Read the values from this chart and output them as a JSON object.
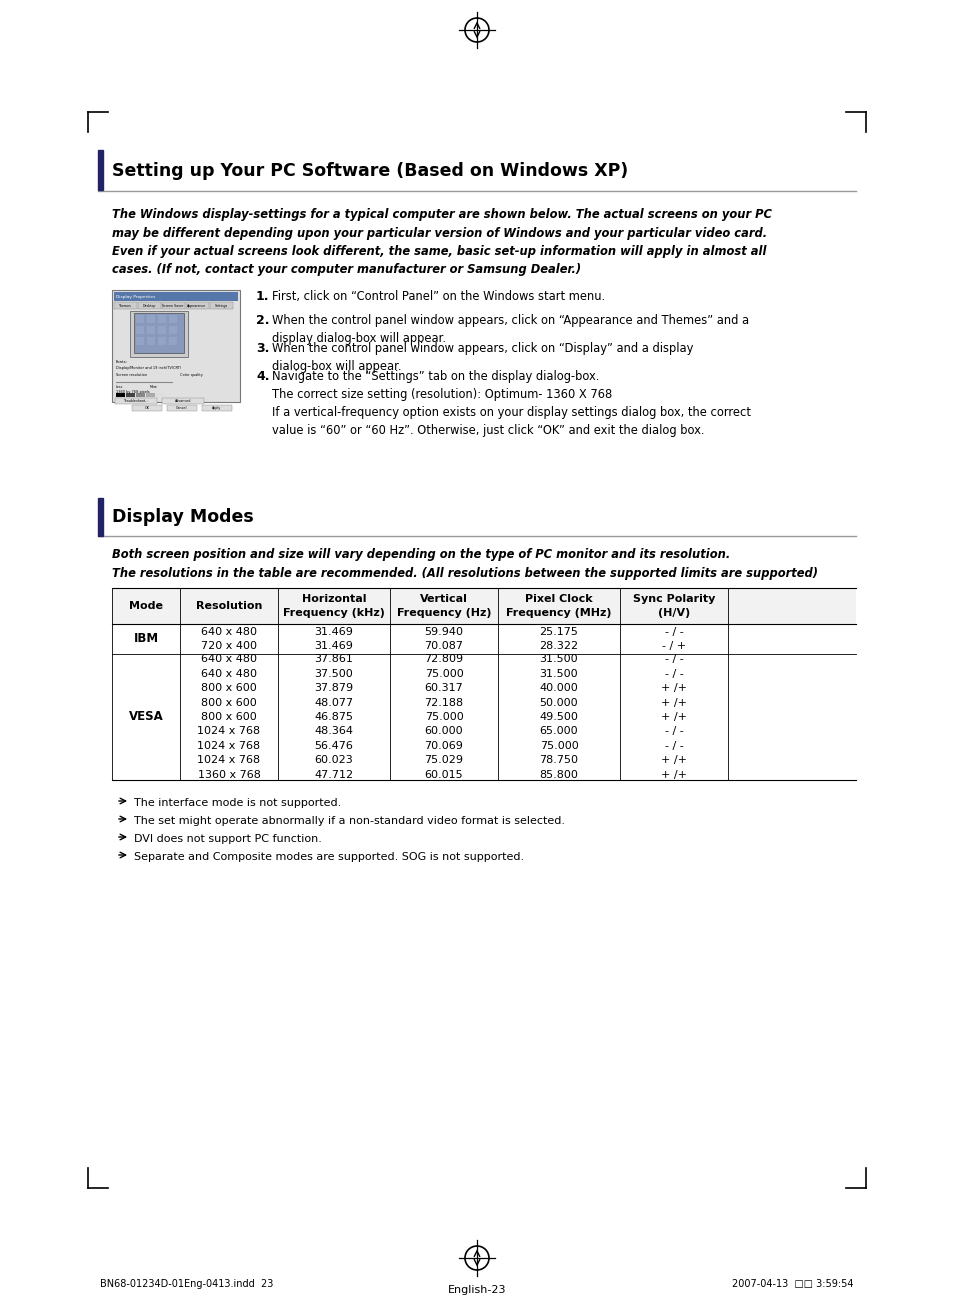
{
  "bg_color": "#ffffff",
  "section1_title": "Setting up Your PC Software (Based on Windows XP)",
  "section1_intro": "The Windows display-settings for a typical computer are shown below. The actual screens on your PC\nmay be different depending upon your particular version of Windows and your particular video card.\nEven if your actual screens look different, the same, basic set-up information will apply in almost all\ncases. (If not, contact your computer manufacturer or Samsung Dealer.)",
  "steps": [
    {
      "num": "1.",
      "text": "First, click on “Control Panel” on the Windows start menu."
    },
    {
      "num": "2.",
      "text": "When the control panel window appears, click on “Appearance and Themes” and a\ndisplay dialog-box will appear."
    },
    {
      "num": "3.",
      "text": "When the control panel window appears, click on “Display” and a display\ndialog-box will appear."
    },
    {
      "num": "4.",
      "text": "Navigate to the “Settings” tab on the display dialog-box.\nThe correct size setting (resolution): Optimum- 1360 X 768\nIf a vertical-frequency option exists on your display settings dialog box, the correct\nvalue is “60” or “60 Hz”. Otherwise, just click “OK” and exit the dialog box."
    }
  ],
  "section2_title": "Display Modes",
  "section2_intro": "Both screen position and size will vary depending on the type of PC monitor and its resolution.\nThe resolutions in the table are recommended. (All resolutions between the supported limits are supported)",
  "table_headers": [
    "Mode",
    "Resolution",
    "Horizontal\nFrequency (kHz)",
    "Vertical\nFrequency (Hz)",
    "Pixel Clock\nFrequency (MHz)",
    "Sync Polarity\n(H/V)"
  ],
  "table_data": [
    [
      "IBM",
      "640 x 480\n720 x 400",
      "31.469\n31.469",
      "59.940\n70.087",
      "25.175\n28.322",
      "- / -\n- / +"
    ],
    [
      "VESA",
      "640 x 480\n640 x 480\n800 x 600\n800 x 600\n800 x 600\n1024 x 768\n1024 x 768\n1024 x 768\n1360 x 768",
      "37.861\n37.500\n37.879\n48.077\n46.875\n48.364\n56.476\n60.023\n47.712",
      "72.809\n75.000\n60.317\n72.188\n75.000\n60.000\n70.069\n75.029\n60.015",
      "31.500\n31.500\n40.000\n50.000\n49.500\n65.000\n75.000\n78.750\n85.800",
      "- / -\n- / -\n+ /+\n+ /+\n+ /+\n- / -\n- / -\n+ /+\n+ /+"
    ]
  ],
  "notes": [
    "The interface mode is not supported.",
    "The set might operate abnormally if a non-standard video format is selected.",
    "DVI does not support PC function.",
    "Separate and Composite modes are supported. SOG is not supported."
  ],
  "footer_left": "BN68-01234D-01Eng-0413.indd  23",
  "footer_center": "English-23",
  "footer_right": "2007-04-13  □□ 3:59:54"
}
